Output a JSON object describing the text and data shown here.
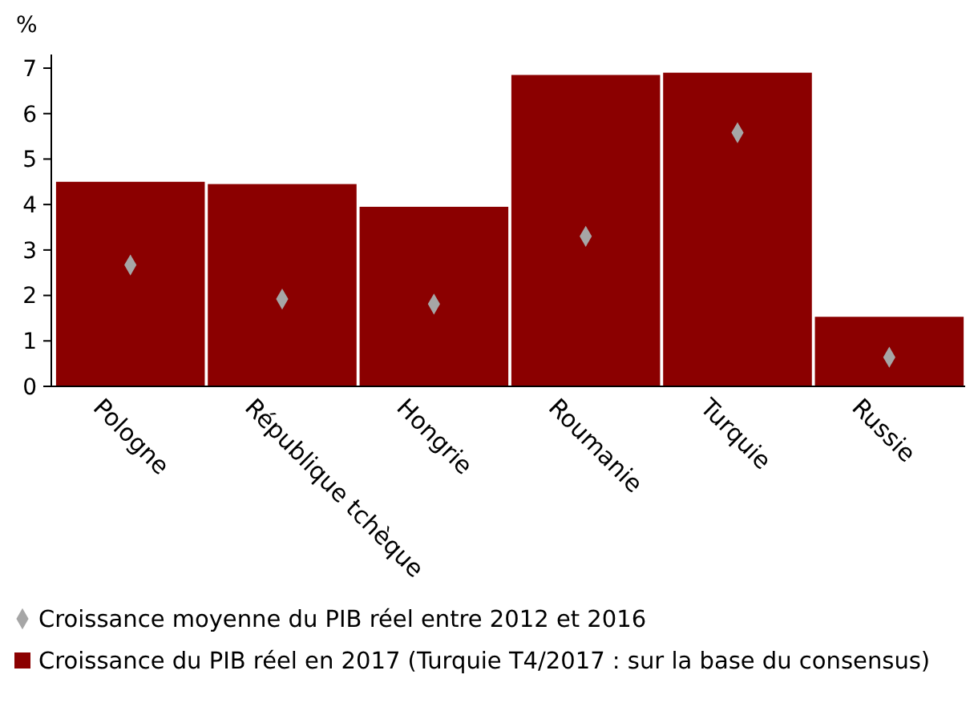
{
  "chart_data": {
    "type": "bar",
    "ylabel": "%",
    "categories": [
      "Pologne",
      "République tchèque",
      "Hongrie",
      "Roumanie",
      "Turquie",
      "Russie"
    ],
    "series": [
      {
        "type": "scatter",
        "name": "Croissance moyenne du PIB réel entre 2012 et 2016",
        "color": "#a6a6a6",
        "values": [
          2.67,
          1.92,
          1.81,
          3.3,
          5.58,
          0.64
        ]
      },
      {
        "name": "Croissance du PIB réel en 2017 (Turquie T4/2017 : sur la base du consensus)",
        "color": "#8b0000",
        "values": [
          4.5,
          4.45,
          3.95,
          6.85,
          6.9,
          1.53
        ]
      }
    ],
    "ylim": [
      0,
      7.3
    ],
    "yticks": [
      0,
      1,
      2,
      3,
      4,
      5,
      6,
      7
    ],
    "grid": false,
    "legend": "bottom",
    "marker": "diamond"
  }
}
